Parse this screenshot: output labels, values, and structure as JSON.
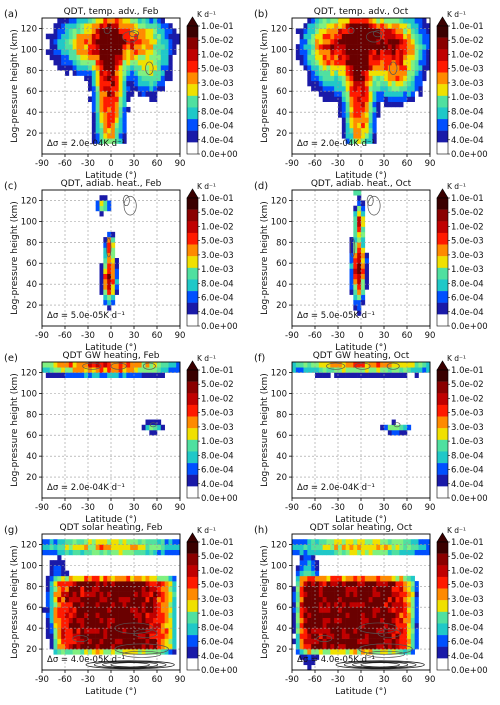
{
  "figure": {
    "colorbar": {
      "unit": "K d⁻¹",
      "tick_labels": [
        "1.0e-01",
        "5.0e-02",
        "1.0e-02",
        "5.0e-03",
        "3.0e-03",
        "1.0e-03",
        "8.0e-04",
        "6.0e-04",
        "4.0e-04",
        "0.0e+00"
      ],
      "colors": [
        "#3a0000",
        "#8a0000",
        "#c00000",
        "#ff1a00",
        "#ff8a00",
        "#f0e000",
        "#50e0a0",
        "#20c8c8",
        "#0050ff",
        "#1a1aa8",
        "#ffffff"
      ]
    }
  },
  "chart_data": [
    {
      "type": "heatmap",
      "panel": "(a)",
      "title": "QDT, temp. adv., Feb",
      "xlabel": "Latitude (°)",
      "ylabel": "Log-pressure height (km)",
      "xlim": [
        -90,
        90
      ],
      "ylim": [
        0,
        130
      ],
      "xticks": [
        -90,
        -60,
        -30,
        0,
        30,
        60,
        90
      ],
      "yticks": [
        20,
        40,
        60,
        80,
        100,
        120
      ],
      "contour_interval": "Δσ = 2.0e-04K d⁻¹",
      "grid": true,
      "colorbar_ticks": "figure.colorbar.tick_labels"
    },
    {
      "type": "heatmap",
      "panel": "(b)",
      "title": "QDT, temp. adv., Oct",
      "xlabel": "Latitude (°)",
      "ylabel": "Log-pressure height (km)",
      "xlim": [
        -90,
        90
      ],
      "ylim": [
        0,
        130
      ],
      "xticks": [
        -90,
        -60,
        -30,
        0,
        30,
        60,
        90
      ],
      "yticks": [
        20,
        40,
        60,
        80,
        100,
        120
      ],
      "contour_interval": "Δσ = 2.0e-04K d⁻¹",
      "grid": true,
      "colorbar_ticks": "figure.colorbar.tick_labels"
    },
    {
      "type": "heatmap",
      "panel": "(c)",
      "title": "QDT, adiab. heat., Feb",
      "xlabel": "Latitude (°)",
      "ylabel": "Log-pressure height (km)",
      "xlim": [
        -90,
        90
      ],
      "ylim": [
        0,
        130
      ],
      "xticks": [
        -90,
        -60,
        -30,
        0,
        30,
        60,
        90
      ],
      "yticks": [
        20,
        40,
        60,
        80,
        100,
        120
      ],
      "contour_interval": "Δσ = 5.0e-05K d⁻¹",
      "grid": true,
      "colorbar_ticks": "figure.colorbar.tick_labels"
    },
    {
      "type": "heatmap",
      "panel": "(d)",
      "title": "QDT, adiab. heat., Oct",
      "xlabel": "Latitude (°)",
      "ylabel": "Log-pressure height (km)",
      "xlim": [
        -90,
        90
      ],
      "ylim": [
        0,
        130
      ],
      "xticks": [
        -90,
        -60,
        -30,
        0,
        30,
        60,
        90
      ],
      "yticks": [
        20,
        40,
        60,
        80,
        100,
        120
      ],
      "contour_interval": "Δσ = 5.0e-05K d⁻¹",
      "grid": true,
      "colorbar_ticks": "figure.colorbar.tick_labels"
    },
    {
      "type": "heatmap",
      "panel": "(e)",
      "title": "QDT GW heating, Feb",
      "xlabel": "Latitude (°)",
      "ylabel": "Log-pressure height (km)",
      "xlim": [
        -90,
        90
      ],
      "ylim": [
        0,
        130
      ],
      "xticks": [
        -90,
        -60,
        -30,
        0,
        30,
        60,
        90
      ],
      "yticks": [
        20,
        40,
        60,
        80,
        100,
        120
      ],
      "contour_interval": "Δσ = 2.0e-04K d⁻¹",
      "grid": true,
      "colorbar_ticks": "figure.colorbar.tick_labels"
    },
    {
      "type": "heatmap",
      "panel": "(f)",
      "title": "QDT GW heating, Oct",
      "xlabel": "Latitude (°)",
      "ylabel": "Log-pressure height (km)",
      "xlim": [
        -90,
        90
      ],
      "ylim": [
        0,
        130
      ],
      "xticks": [
        -90,
        -60,
        -30,
        0,
        30,
        60,
        90
      ],
      "yticks": [
        20,
        40,
        60,
        80,
        100,
        120
      ],
      "contour_interval": "Δσ = 2.0e-04K d⁻¹",
      "grid": true,
      "colorbar_ticks": "figure.colorbar.tick_labels"
    },
    {
      "type": "heatmap",
      "panel": "(g)",
      "title": "QDT solar heating, Feb",
      "xlabel": "Latitude (°)",
      "ylabel": "Log-pressure height (km)",
      "xlim": [
        -90,
        90
      ],
      "ylim": [
        0,
        130
      ],
      "xticks": [
        -90,
        -60,
        -30,
        0,
        30,
        60,
        90
      ],
      "yticks": [
        20,
        40,
        60,
        80,
        100,
        120
      ],
      "contour_interval": "Δσ = 4.0e-05K d⁻¹",
      "grid": true,
      "colorbar_ticks": "figure.colorbar.tick_labels"
    },
    {
      "type": "heatmap",
      "panel": "(h)",
      "title": "QDT solar heating, Oct",
      "xlabel": "Latitude (°)",
      "ylabel": "Log-pressure height (km)",
      "xlim": [
        -90,
        90
      ],
      "ylim": [
        0,
        130
      ],
      "xticks": [
        -90,
        -60,
        -30,
        0,
        30,
        60,
        90
      ],
      "yticks": [
        20,
        40,
        60,
        80,
        100,
        120
      ],
      "contour_interval": "Δσ = 4.0e-05K d⁻¹",
      "grid": true,
      "colorbar_ticks": "figure.colorbar.tick_labels"
    }
  ]
}
